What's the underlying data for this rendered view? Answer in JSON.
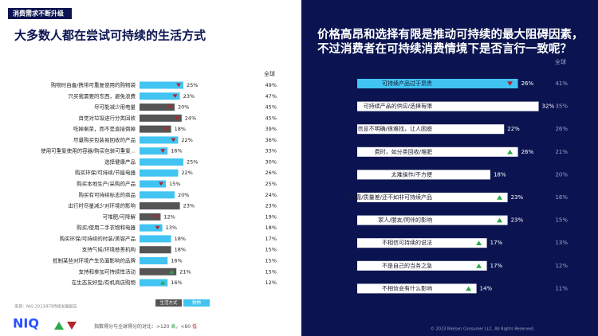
{
  "tag": "消费需求不断升级",
  "footer": {
    "source": "来源：NIQ 2023年可持续发展报告",
    "logo": "NIQ",
    "note_prefix": "指数得分与全球得分的对比：>120 ",
    "high": "高",
    "note_mid": "，<80 ",
    "low": "低",
    "copyright": "© 2023 Nielsen Consumer LLC. All Rights Reserved."
  },
  "chart_data": [
    {
      "type": "hbar",
      "title": "大多数人都在尝试可持续的生活方式",
      "global_header": "全球",
      "categories": [
        "购物时自备/携带可重复使用的购物袋",
        "只买我需要的东西，避免浪费",
        "尽可能减少用电量",
        "自觉对垃圾进行分类回收",
        "吃掉剩菜，而不是直接倒掉",
        "尽量购买包装易回收的产品",
        "使用可重复使用的容器/购买包装可重复...",
        "选择健康产品",
        "购买环保/可持续/节能电器",
        "购买本地生产/采购的产品",
        "购买有可持续标志的商品",
        "出行时尽量减少对环境的影响",
        "可堆肥/可降解",
        "购买/使用二手衣物和电器",
        "购买环保/可持续的时装/美容产品",
        "支持气候/环境慈善机构",
        "抵制某些对环境产生负面影响的品牌",
        "支持和参加可持续性活动",
        "在生态友好型/有机商店购物"
      ],
      "values": [
        25,
        23,
        20,
        24,
        18,
        22,
        16,
        25,
        22,
        15,
        20,
        23,
        12,
        13,
        18,
        18,
        16,
        21,
        16
      ],
      "value_labels": [
        "25%",
        "23%",
        "20%",
        "24%",
        "18%",
        "22%",
        "16%",
        "25%",
        "22%",
        "15%",
        "20%",
        "23%",
        "12%",
        "13%",
        "18%",
        "18%",
        "16%",
        "21%",
        "16%"
      ],
      "global_values": [
        49,
        47,
        45,
        45,
        39,
        36,
        33,
        30,
        26,
        25,
        24,
        23,
        19,
        18,
        17,
        15,
        15,
        15,
        12
      ],
      "global_labels": [
        "49%",
        "47%",
        "45%",
        "45%",
        "39%",
        "36%",
        "33%",
        "30%",
        "26%",
        "25%",
        "24%",
        "23%",
        "19%",
        "18%",
        "17%",
        "15%",
        "15%",
        "15%",
        "12%"
      ],
      "groups": [
        1,
        1,
        0,
        0,
        0,
        1,
        1,
        1,
        1,
        1,
        1,
        0,
        0,
        1,
        1,
        0,
        1,
        0,
        1
      ],
      "trend": [
        "down",
        "down",
        "down",
        "down",
        "down",
        "down",
        "down",
        null,
        null,
        "down",
        null,
        null,
        "down",
        "down",
        null,
        null,
        null,
        "up",
        "up"
      ],
      "legend": [
        {
          "name": "生活方式",
          "color": "#555555"
        },
        {
          "name": "购物",
          "color": "#41c4f2"
        }
      ],
      "up_color": "#2aa84a",
      "down_color": "#b3262e"
    },
    {
      "type": "hbar-dark",
      "title": [
        "价格高昂和选择有限是推动可持续的最大阻碍因素，",
        "不过消费者在可持续消费情境下是否言行一致呢？"
      ],
      "global_header": "全球",
      "categories": [
        "可持续产品过于昂贵",
        "可持续产品的供应/选择有限",
        "信息不明确/很难找，让人困惑",
        "费时，如分类回收/堆肥",
        "太难操作/不方便",
        "不可靠/质量差/还不如非可持续产品",
        "家人/朋友/同伴的影响",
        "不相信可持续的说法",
        "不是自己的当务之急",
        "不相信会有什么影响"
      ],
      "values": [
        26,
        32,
        22,
        26,
        18,
        23,
        23,
        17,
        17,
        14
      ],
      "value_labels": [
        "26%",
        "32%",
        "22%",
        "26%",
        "18%",
        "23%",
        "23%",
        "17%",
        "17%",
        "14%"
      ],
      "global_values": [
        41,
        35,
        26,
        21,
        20,
        16,
        15,
        13,
        12,
        11
      ],
      "global_labels": [
        "41%",
        "35%",
        "26%",
        "21%",
        "20%",
        "16%",
        "15%",
        "13%",
        "12%",
        "11%"
      ],
      "trend": [
        "down",
        null,
        null,
        "up",
        null,
        "up",
        "up",
        "up",
        "up",
        "up"
      ],
      "color": "#ffffff",
      "highlight_index": 0,
      "highlight_color": "#41c4f2",
      "up_color": "#2aa84a",
      "down_color": "#b3262e"
    }
  ]
}
